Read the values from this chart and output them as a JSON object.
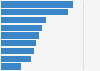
{
  "values": [
    88,
    82,
    55,
    50,
    46,
    43,
    40,
    37,
    25
  ],
  "bar_color": "#3a86c8",
  "background_color": "#f5f5f5",
  "xlim": [
    0,
    120
  ],
  "grid_color": "#d0d0d0",
  "bar_height": 0.82
}
